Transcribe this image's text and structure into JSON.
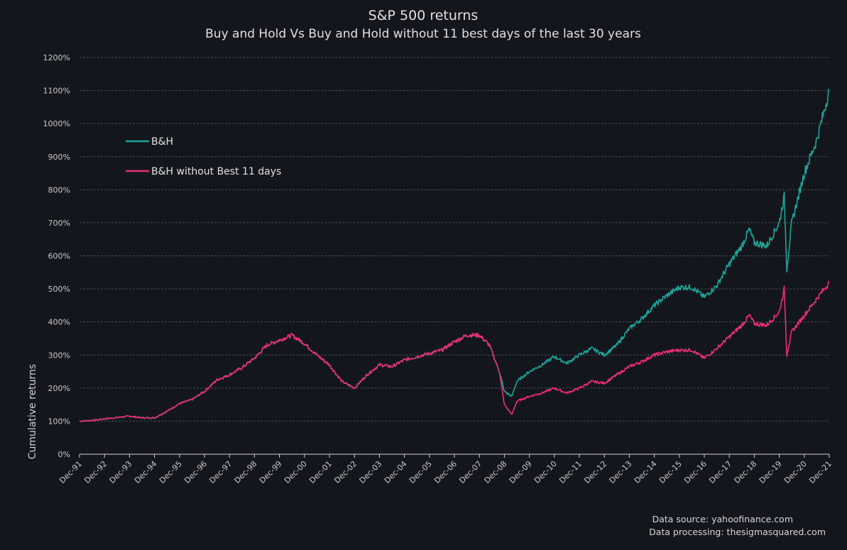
{
  "chart_data": {
    "type": "line",
    "title": "S&P 500 returns",
    "subtitle": "Buy and Hold Vs Buy and Hold without 11 best days of the last 30 years",
    "xlabel": "",
    "ylabel": "Cumulative returns",
    "ylim": [
      0,
      1200
    ],
    "grid": true,
    "legend_placement": "top-left",
    "y_ticks": [
      "0%",
      "100%",
      "200%",
      "300%",
      "400%",
      "500%",
      "600%",
      "700%",
      "800%",
      "900%",
      "1000%",
      "1100%",
      "1200%"
    ],
    "x_ticks": [
      "Dec-91",
      "Dec-92",
      "Dec-93",
      "Dec-94",
      "Dec-95",
      "Dec-96",
      "Dec-97",
      "Dec-98",
      "Dec-99",
      "Dec-00",
      "Dec-01",
      "Dec-02",
      "Dec-03",
      "Dec-04",
      "Dec-05",
      "Dec-06",
      "Dec-07",
      "Dec-08",
      "Dec-09",
      "Dec-10",
      "Dec-11",
      "Dec-12",
      "Dec-13",
      "Dec-14",
      "Dec-15",
      "Dec-16",
      "Dec-17",
      "Dec-18",
      "Dec-19",
      "Dec-20",
      "Dec-21"
    ],
    "x_years_since_dec91": [
      0,
      0.5,
      1,
      1.5,
      2,
      2.5,
      3,
      3.5,
      4,
      4.5,
      5,
      5.5,
      6,
      6.5,
      7,
      7.5,
      8,
      8.5,
      9,
      9.5,
      10,
      10.5,
      11,
      11.5,
      12,
      12.5,
      13,
      13.5,
      14,
      14.5,
      15,
      15.5,
      16,
      16.4,
      16.8,
      17.0,
      17.3,
      17.5,
      18,
      18.5,
      19,
      19.5,
      20,
      20.5,
      21,
      21.5,
      22,
      22.5,
      23,
      23.5,
      24,
      24.5,
      25,
      25.5,
      26,
      26.5,
      26.8,
      27,
      27.5,
      28,
      28.2,
      28.3,
      28.5,
      29,
      29.5,
      30
    ],
    "series": [
      {
        "name": "B&H",
        "color": "#1fa398",
        "values": [
          100,
          102,
          107,
          111,
          115,
          110,
          110,
          130,
          153,
          165,
          190,
          225,
          240,
          262,
          290,
          330,
          345,
          360,
          335,
          300,
          270,
          220,
          200,
          240,
          270,
          265,
          285,
          295,
          305,
          315,
          340,
          360,
          360,
          330,
          250,
          190,
          175,
          220,
          250,
          270,
          295,
          275,
          300,
          320,
          300,
          330,
          380,
          410,
          450,
          480,
          505,
          505,
          475,
          510,
          575,
          630,
          680,
          640,
          630,
          700,
          780,
          560,
          700,
          850,
          950,
          1100
        ]
      },
      {
        "name": "B&H without Best 11 days",
        "color": "#ec2b7a",
        "values": [
          100,
          102,
          107,
          111,
          115,
          110,
          110,
          130,
          153,
          165,
          190,
          225,
          240,
          262,
          290,
          330,
          345,
          360,
          335,
          300,
          270,
          220,
          200,
          240,
          270,
          265,
          285,
          295,
          305,
          315,
          340,
          360,
          360,
          330,
          250,
          150,
          120,
          160,
          175,
          185,
          200,
          185,
          200,
          220,
          215,
          240,
          265,
          280,
          300,
          310,
          315,
          315,
          290,
          320,
          355,
          390,
          420,
          395,
          390,
          430,
          500,
          300,
          370,
          420,
          470,
          520
        ]
      }
    ]
  },
  "source": {
    "line1": "Data source: yahoofinance.com",
    "line2": "Data processing: thesigmasquared.com"
  }
}
